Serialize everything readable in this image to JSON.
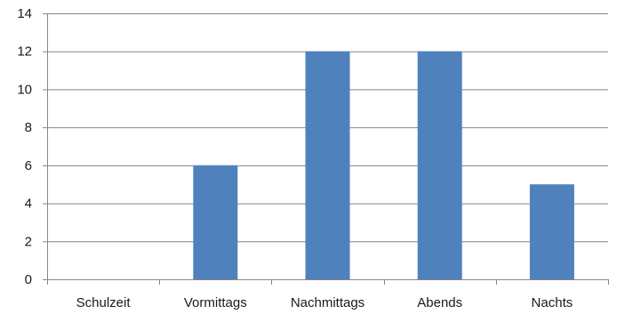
{
  "chart_data": {
    "type": "bar",
    "title": "",
    "xlabel": "",
    "ylabel": "",
    "categories": [
      "Schulzeit",
      "Vormittags",
      "Nachmittags",
      "Abends",
      "Nachts"
    ],
    "values": [
      0,
      6,
      12,
      12,
      5
    ],
    "ylim": [
      0,
      14
    ],
    "yticks": [
      0,
      2,
      4,
      6,
      8,
      10,
      12,
      14
    ],
    "grid": true,
    "legend": "none",
    "bar_color": "#4f81bd",
    "grid_color": "#868686",
    "axis_color": "#868686"
  }
}
